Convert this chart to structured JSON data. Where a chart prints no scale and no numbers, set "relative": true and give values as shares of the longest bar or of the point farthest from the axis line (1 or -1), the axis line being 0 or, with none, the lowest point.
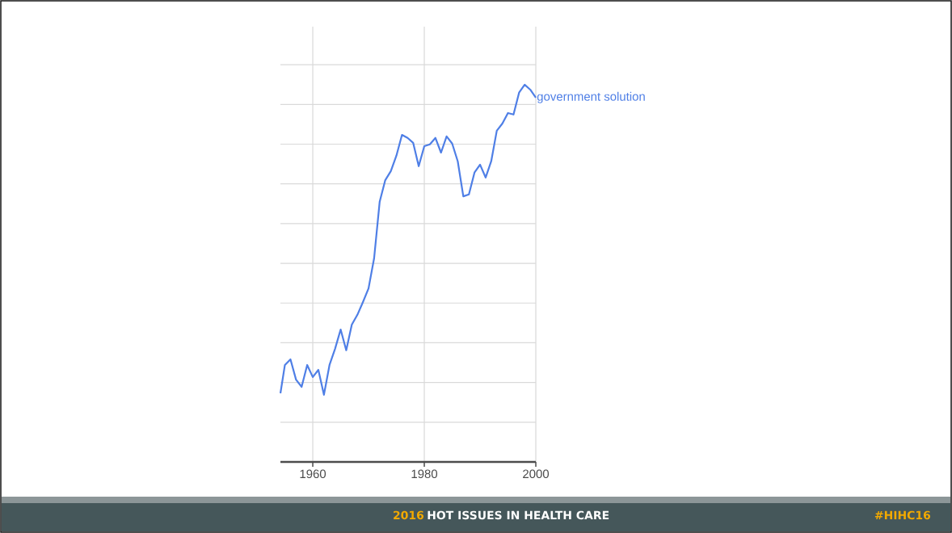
{
  "chart_data": {
    "type": "line",
    "relative": true,
    "x": [
      1954.2,
      1955,
      1956,
      1957,
      1958,
      1959,
      1960,
      1961,
      1962,
      1963,
      1964,
      1965,
      1966,
      1967,
      1968,
      1969,
      1970,
      1971,
      1972,
      1973,
      1974,
      1975,
      1976,
      1977,
      1978,
      1979,
      1980,
      1981,
      1982,
      1983,
      1984,
      1985,
      1986,
      1987,
      1988,
      1989,
      1990,
      1991,
      1992,
      1993,
      1994,
      1995,
      1996,
      1997,
      1998,
      1999,
      2000
    ],
    "series": [
      {
        "name": "government solution",
        "color": "#4f7fe6",
        "values": [
          0.182,
          0.257,
          0.272,
          0.218,
          0.199,
          0.257,
          0.225,
          0.244,
          0.178,
          0.257,
          0.3,
          0.351,
          0.296,
          0.364,
          0.39,
          0.424,
          0.46,
          0.54,
          0.69,
          0.747,
          0.771,
          0.812,
          0.867,
          0.859,
          0.846,
          0.784,
          0.837,
          0.842,
          0.859,
          0.82,
          0.863,
          0.844,
          0.797,
          0.704,
          0.709,
          0.767,
          0.788,
          0.754,
          0.797,
          0.878,
          0.897,
          0.925,
          0.921,
          0.979,
          1,
          0.987,
          0.966
        ]
      }
    ],
    "xlim": [
      1954.2,
      2000
    ],
    "xticks": [
      1960,
      1980,
      2000
    ],
    "grid": true,
    "annotations": [
      "2016",
      "HOT ISSUES IN HEALTH CARE",
      "#HIHC16"
    ]
  }
}
